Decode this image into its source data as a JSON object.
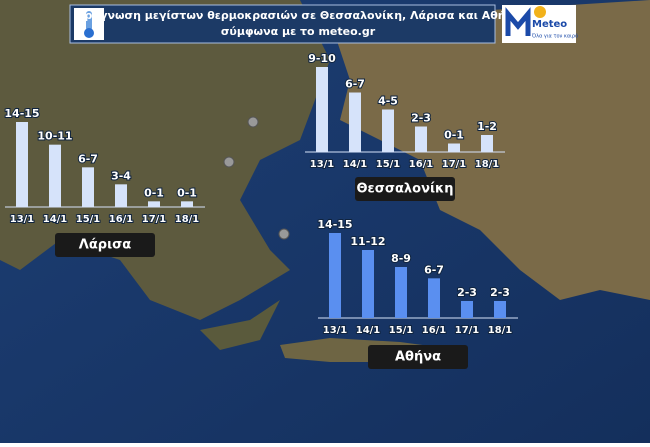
{
  "header": {
    "title_line1": "Πρόγνωση μεγίστων θερμοκρασιών σε Θεσσαλονίκη, Λάρισα και Αθήνα",
    "title_line2": "σύμφωνα με το meteo.gr",
    "logo_name": "Meteo",
    "logo_tagline": "Όλα για τον καιρό"
  },
  "chart_data": [
    {
      "type": "bar",
      "title": "Λάρισα",
      "categories": [
        "13/1",
        "14/1",
        "15/1",
        "16/1",
        "17/1",
        "18/1"
      ],
      "values": [
        15,
        11,
        7,
        4,
        1,
        1
      ],
      "value_labels": [
        "14-15",
        "10-11",
        "6-7",
        "3-4",
        "0-1",
        "0-1"
      ],
      "color": "#d6e3fa"
    },
    {
      "type": "bar",
      "title": "Θεσσαλονίκη",
      "categories": [
        "13/1",
        "14/1",
        "15/1",
        "16/1",
        "17/1",
        "18/1"
      ],
      "values": [
        10,
        7,
        5,
        3,
        1,
        2
      ],
      "value_labels": [
        "9-10",
        "6-7",
        "4-5",
        "2-3",
        "0-1",
        "1-2"
      ],
      "color": "#d6e3fa"
    },
    {
      "type": "bar",
      "title": "Αθήνα",
      "categories": [
        "13/1",
        "14/1",
        "15/1",
        "16/1",
        "17/1",
        "18/1"
      ],
      "values": [
        15,
        12,
        9,
        7,
        3,
        3
      ],
      "value_labels": [
        "14-15",
        "11-12",
        "8-9",
        "6-7",
        "2-3",
        "2-3"
      ],
      "color": "#5a8ff0"
    }
  ]
}
